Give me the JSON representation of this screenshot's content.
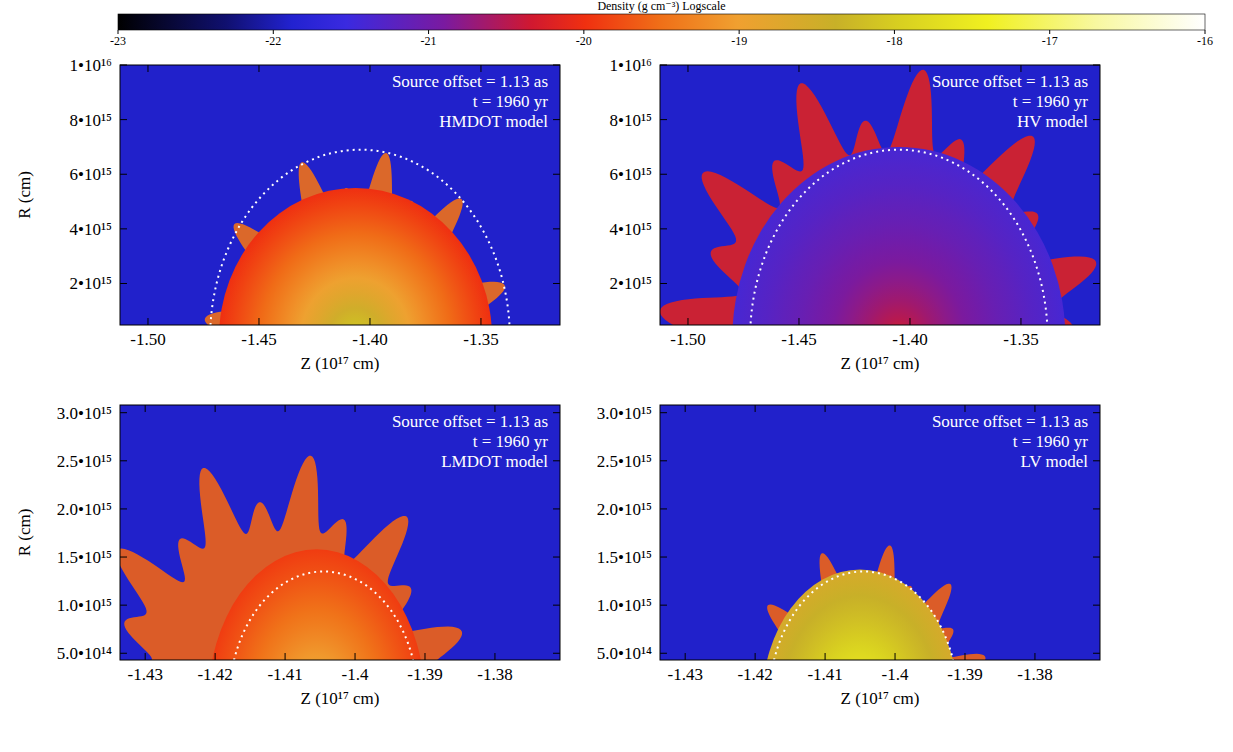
{
  "chart_data": {
    "type": "density_map",
    "colorbar": {
      "label": "Density (g cm⁻³) Logscale",
      "range": [
        -23,
        -16
      ],
      "ticks": [
        -23,
        -22,
        -21,
        -20,
        -19,
        -18,
        -17,
        -16
      ]
    },
    "panels": [
      {
        "annotations": [
          "Source offset = 1.13 as",
          "t = 1960 yr",
          "HMDOT model"
        ],
        "xlabel": "Z (10¹⁷ cm)",
        "ylabel": "R (cm)",
        "xlim": [
          -1.5126,
          -1.3144
        ],
        "ylim": [
          480000000000000.0,
          1e+16
        ],
        "xticks": [
          {
            "value": -1.5,
            "label": "-1.50"
          },
          {
            "value": -1.45,
            "label": "-1.45"
          },
          {
            "value": -1.4,
            "label": "-1.40"
          },
          {
            "value": -1.35,
            "label": "-1.35"
          }
        ],
        "yticks": [
          {
            "value": 2000000000000000.0,
            "label": "2•10¹⁵"
          },
          {
            "value": 4000000000000000.0,
            "label": "4•10¹⁵"
          },
          {
            "value": 6000000000000000.0,
            "label": "6•10¹⁵"
          },
          {
            "value": 8000000000000000.0,
            "label": "8•10¹⁵"
          },
          {
            "value": 1e+16,
            "label": "1•10¹⁶"
          }
        ],
        "background_density": -21.9,
        "shell": {
          "z": [
            -1.476,
            -1.335
          ],
          "r_max": 6900000000000000.0,
          "density": -19.5
        },
        "core": {
          "z": [
            -1.468,
            -1.345
          ],
          "r_max": 5500000000000000.0,
          "density_center": -17.6,
          "density_edge": -20.0
        },
        "circle": {
          "z": [
            -1.472,
            -1.337
          ],
          "r_max": 6900000000000000.0
        }
      },
      {
        "annotations": [
          "Source offset = 1.13 as",
          "t = 1960 yr",
          "HV model"
        ],
        "xlabel": "Z (10¹⁷ cm)",
        "xlim": [
          -1.5126,
          -1.3144
        ],
        "ylim": [
          480000000000000.0,
          1e+16
        ],
        "xticks": [
          {
            "value": -1.5,
            "label": "-1.50"
          },
          {
            "value": -1.45,
            "label": "-1.45"
          },
          {
            "value": -1.4,
            "label": "-1.40"
          },
          {
            "value": -1.35,
            "label": "-1.35"
          }
        ],
        "yticks": [
          {
            "value": 2000000000000000.0,
            "label": "2•10¹⁵"
          },
          {
            "value": 4000000000000000.0,
            "label": "4•10¹⁵"
          },
          {
            "value": 6000000000000000.0,
            "label": "6•10¹⁵"
          },
          {
            "value": 8000000000000000.0,
            "label": "8•10¹⁵"
          },
          {
            "value": 1e+16,
            "label": "1•10¹⁶"
          }
        ],
        "background_density": -21.9,
        "shell": {
          "z": [
            -1.515,
            -1.31
          ],
          "r_max": 1e+16,
          "density": -20.2
        },
        "core": {
          "z": [
            -1.48,
            -1.33
          ],
          "r_max": 7000000000000000.0,
          "density_center": -20.2,
          "density_edge": -21.4
        },
        "circle": {
          "z": [
            -1.472,
            -1.338
          ],
          "r_max": 6900000000000000.0
        }
      },
      {
        "annotations": [
          "Source offset = 1.13 as",
          "t = 1960 yr",
          "LMDOT model"
        ],
        "xlabel": "Z (10¹⁷ cm)",
        "ylabel": "R (cm)",
        "xlim": [
          -1.4336,
          -1.3707
        ],
        "ylim": [
          430000000000000.0,
          3080000000000000.0
        ],
        "xticks": [
          -1.43,
          -1.42,
          -1.41,
          -1.4,
          {
            "value": -1.39,
            "label": "-1.39"
          },
          {
            "value": -1.38,
            "label": "-1.38"
          }
        ],
        "yticks": [
          {
            "value": 500000000000000.0,
            "label": "5.0•10¹⁴"
          },
          {
            "value": 1000000000000000.0,
            "label": "1.0•10¹⁵"
          },
          {
            "value": 1500000000000000.0,
            "label": "1.5•10¹⁵"
          },
          {
            "value": 2000000000000000.0,
            "label": "2.0•10¹⁵"
          },
          {
            "value": 2500000000000000.0,
            "label": "2.5•10¹⁵"
          },
          {
            "value": 3000000000000000.0,
            "label": "3.0•10¹⁵"
          }
        ],
        "background_density": -21.9,
        "shell": {
          "z": [
            -1.44,
            -1.383
          ],
          "r_max": 2600000000000000.0,
          "density": -19.6
        },
        "core": {
          "z": [
            -1.421,
            -1.39
          ],
          "r_max": 1580000000000000.0,
          "density_center": -18.3,
          "density_edge": -19.9
        },
        "circle": {
          "z": [
            -1.418,
            -1.391
          ],
          "r_max": 1350000000000000.0
        }
      },
      {
        "annotations": [
          "Source offset = 1.13 as",
          "t = 1960 yr",
          "LV model"
        ],
        "xlabel": "Z (10¹⁷ cm)",
        "xlim": [
          -1.4336,
          -1.3707
        ],
        "ylim": [
          430000000000000.0,
          3080000000000000.0
        ],
        "xticks": [
          -1.43,
          -1.42,
          -1.41,
          -1.4,
          {
            "value": -1.39,
            "label": "-1.39"
          },
          {
            "value": -1.38,
            "label": "-1.38"
          }
        ],
        "yticks": [
          {
            "value": 500000000000000.0,
            "label": "5.0•10¹⁴"
          },
          {
            "value": 1000000000000000.0,
            "label": "1.0•10¹⁵"
          },
          {
            "value": 1500000000000000.0,
            "label": "1.5•10¹⁵"
          },
          {
            "value": 2000000000000000.0,
            "label": "2.0•10¹⁵"
          },
          {
            "value": 2500000000000000.0,
            "label": "2.5•10¹⁵"
          },
          {
            "value": 3000000000000000.0,
            "label": "3.0•10¹⁵"
          }
        ],
        "background_density": -21.9,
        "shell": {
          "z": [
            -1.422,
            -1.386
          ],
          "r_max": 1650000000000000.0,
          "density": -19.6
        },
        "core": {
          "z": [
            -1.419,
            -1.391
          ],
          "r_max": 1370000000000000.0,
          "density_center": -16.9,
          "density_edge": -18.6
        },
        "circle": {
          "z": [
            -1.418,
            -1.391
          ],
          "r_max": 1350000000000000.0
        }
      }
    ]
  }
}
